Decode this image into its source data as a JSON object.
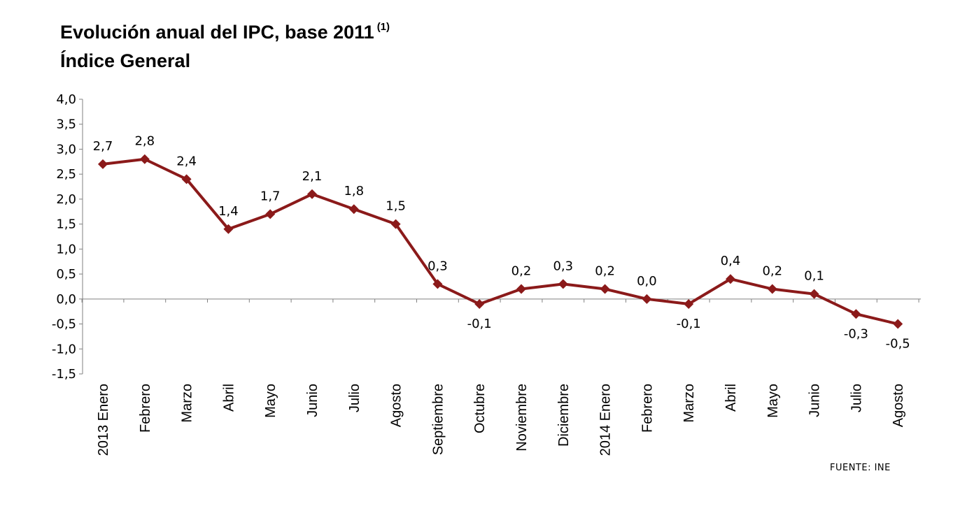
{
  "chart_data": {
    "type": "line",
    "title": "Evolución anual del IPC, base 2011",
    "title_sup": "(1)",
    "subtitle": "Índice General",
    "categories": [
      "2013 Enero",
      "Febrero",
      "Marzo",
      "Abril",
      "Mayo",
      "Junio",
      "Julio",
      "Agosto",
      "Septiembre",
      "Octubre",
      "Noviembre",
      "Diciembre",
      "2014 Enero",
      "Febrero",
      "Marzo",
      "Abril",
      "Mayo",
      "Junio",
      "Julio",
      "Agosto"
    ],
    "series": [
      {
        "values": [
          2.7,
          2.8,
          2.4,
          1.4,
          1.7,
          2.1,
          1.8,
          1.5,
          0.3,
          -0.1,
          0.2,
          0.3,
          0.2,
          0.0,
          -0.1,
          0.4,
          0.2,
          0.1,
          -0.3,
          -0.5
        ],
        "labels": [
          "2,7",
          "2,8",
          "2,4",
          "1,4",
          "1,7",
          "2,1",
          "1,8",
          "1,5",
          "0,3",
          "-0,1",
          "0,2",
          "0,3",
          "0,2",
          "0,0",
          "-0,1",
          "0,4",
          "0,2",
          "0,1",
          "-0,3",
          "-0,5"
        ],
        "color": "#8b1a1a"
      }
    ],
    "label_below": [
      false,
      false,
      false,
      false,
      false,
      false,
      false,
      false,
      false,
      true,
      false,
      false,
      false,
      false,
      true,
      false,
      false,
      false,
      true,
      true
    ],
    "label_visible": [
      true,
      true,
      true,
      true,
      true,
      true,
      true,
      true,
      true,
      true,
      true,
      true,
      true,
      true,
      true,
      true,
      true,
      true,
      true,
      true
    ],
    "ylim": [
      -1.5,
      4.0
    ],
    "yticks": [
      4.0,
      3.5,
      3.0,
      2.5,
      2.0,
      1.5,
      1.0,
      0.5,
      0.0,
      -0.5,
      -1.0,
      -1.5
    ],
    "ytick_labels": [
      "4,0",
      "3,5",
      "3,0",
      "2,5",
      "2,0",
      "1,5",
      "1,0",
      "0,5",
      "0,0",
      "-0,5",
      "-1,0",
      "-1,5"
    ],
    "xlabel": "",
    "ylabel": "",
    "grid": false,
    "legend": "none",
    "source": "FUENTE: INE"
  }
}
